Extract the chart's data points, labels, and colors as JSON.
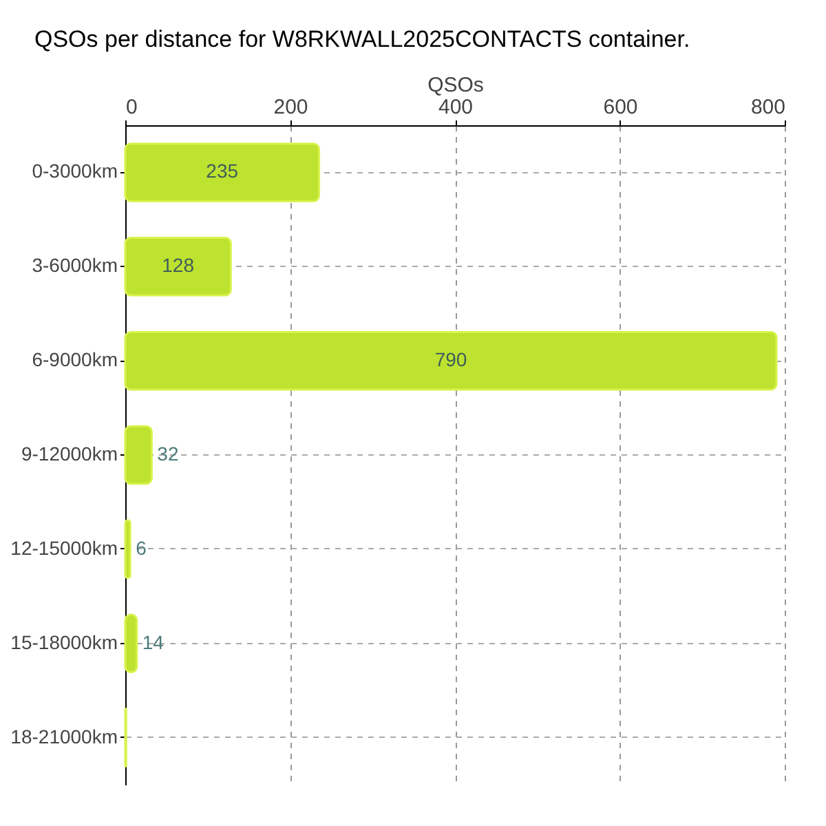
{
  "chart_data": {
    "type": "bar",
    "orientation": "horizontal",
    "title": "QSOs per distance for W8RKWALL2025CONTACTS container.",
    "xlabel": "QSOs",
    "categories": [
      "0-3000km",
      "3-6000km",
      "6-9000km",
      "9-12000km",
      "12-15000km",
      "15-18000km",
      "18-21000km"
    ],
    "values": [
      235,
      128,
      790,
      32,
      6,
      14,
      1
    ],
    "value_labels": [
      "235",
      "128",
      "790",
      "32",
      "6",
      "14",
      null
    ],
    "color": "#bde22f",
    "xlim": [
      0,
      800
    ],
    "xticks": [
      0,
      200,
      400,
      600,
      800
    ],
    "grid": true
  }
}
